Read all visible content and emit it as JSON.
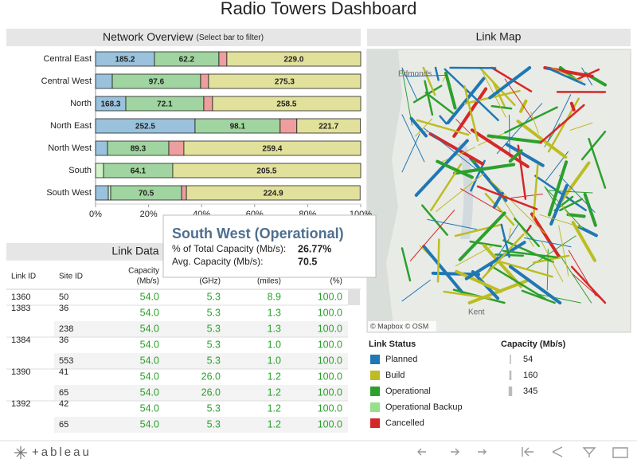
{
  "title": "Radio Towers Dashboard",
  "chart_data": {
    "type": "bar",
    "orientation": "horizontal",
    "stacked": true,
    "title": "Network Overview",
    "subtitle": "(Select bar to filter)",
    "categories": [
      "Central East",
      "Central West",
      "North",
      "North East",
      "North West",
      "South",
      "South West"
    ],
    "series": [
      {
        "name": "Planned",
        "color": "#1f77b4",
        "values": [
          22.2,
          6.3,
          11.4,
          37.5,
          4.5,
          null,
          4.8
        ],
        "avg_capacity_labels": [
          "185.2",
          null,
          "168.3",
          "252.5",
          null,
          null,
          null
        ]
      },
      {
        "name": "Operational Backup",
        "color": "#98df8a",
        "values": [
          null,
          null,
          null,
          null,
          null,
          3.0,
          0.9
        ],
        "avg_capacity_labels": [
          null,
          null,
          null,
          null,
          null,
          null,
          null
        ]
      },
      {
        "name": "Operational",
        "color": "#2ca02c",
        "values": [
          24.3,
          33.3,
          29.4,
          32.1,
          23.1,
          26.1,
          26.77
        ],
        "avg_capacity_labels": [
          "62.2",
          "97.6",
          "72.1",
          "98.1",
          "89.3",
          "64.1",
          "70.5"
        ]
      },
      {
        "name": "Cancelled",
        "color": "#d62728",
        "values": [
          3.0,
          3.0,
          3.3,
          6.3,
          5.7,
          null,
          1.8
        ],
        "avg_capacity_labels": [
          null,
          null,
          null,
          null,
          null,
          null,
          null
        ]
      },
      {
        "name": "Build",
        "color": "#bcbd22",
        "values": [
          50.5,
          57.4,
          55.9,
          24.0,
          66.7,
          70.9,
          65.5
        ],
        "avg_capacity_labels": [
          "229.0",
          "275.3",
          "258.5",
          "221.7",
          "259.4",
          "205.5",
          "224.9"
        ]
      }
    ],
    "xlim": [
      0,
      100
    ],
    "xticks": [
      {
        "value": 0,
        "label": "0%"
      },
      {
        "value": 20,
        "label": "20%"
      },
      {
        "value": 40,
        "label": "40%"
      },
      {
        "value": 60,
        "label": "60%"
      },
      {
        "value": 80,
        "label": "80%"
      },
      {
        "value": 100,
        "label": "100%"
      }
    ]
  },
  "tooltip": {
    "title": "South West (Operational)",
    "rows": [
      [
        "% of Total Capacity (Mb/s):",
        "26.77%"
      ],
      [
        "Avg. Capacity (Mb/s):",
        "70.5"
      ]
    ]
  },
  "link_data": {
    "title": "Link Data",
    "columns": [
      [
        "Link ID"
      ],
      [
        "Site ID"
      ],
      [
        "Capacity",
        "(Mb/s)"
      ],
      [
        "(GHz)"
      ],
      [
        "(miles)"
      ],
      [
        "(%)"
      ]
    ],
    "rows": [
      [
        "1360",
        "50",
        "54.0",
        "5.3",
        "8.9",
        "100.0"
      ],
      [
        "1383",
        "36",
        "54.0",
        "5.3",
        "1.3",
        "100.0"
      ],
      [
        null,
        "238",
        "54.0",
        "5.3",
        "1.3",
        "100.0"
      ],
      [
        "1384",
        "36",
        "54.0",
        "5.3",
        "1.0",
        "100.0"
      ],
      [
        null,
        "553",
        "54.0",
        "5.3",
        "1.0",
        "100.0"
      ],
      [
        "1390",
        "41",
        "54.0",
        "26.0",
        "1.2",
        "100.0"
      ],
      [
        null,
        "65",
        "54.0",
        "26.0",
        "1.2",
        "100.0"
      ],
      [
        "1392",
        "42",
        "54.0",
        "5.3",
        "1.2",
        "100.0"
      ],
      [
        null,
        "65",
        "54.0",
        "5.3",
        "1.2",
        "100.0"
      ]
    ]
  },
  "link_map": {
    "title": "Link Map",
    "places": [
      "Edmonds",
      "Kent"
    ],
    "attribution": "© Mapbox © OSM"
  },
  "link_status_title": "Link Status",
  "capacity_legend": {
    "title": "Capacity (Mb/s)",
    "values": [
      54,
      160,
      345
    ]
  },
  "footer": {
    "logo": "+ableau"
  }
}
